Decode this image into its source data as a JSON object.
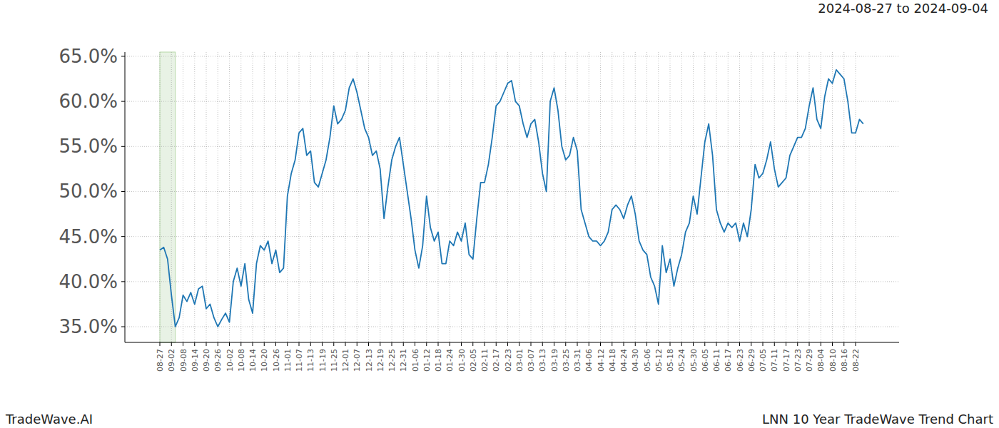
{
  "chart_data": {
    "type": "line",
    "title": "2024-08-27 to 2024-09-04",
    "annotations": [
      "TradeWave.AI",
      "LNN 10 Year TradeWave Trend Chart"
    ],
    "color": "#1f77b4",
    "grid": true,
    "highlight": [
      0,
      4
    ],
    "ylim": [
      33.26,
      65.47
    ],
    "yticks": [
      {
        "value": 35,
        "label": "35.0%"
      },
      {
        "value": 40,
        "label": "40.0%"
      },
      {
        "value": 45,
        "label": "45.0%"
      },
      {
        "value": 50,
        "label": "50.0%"
      },
      {
        "value": 55,
        "label": "55.0%"
      },
      {
        "value": 60,
        "label": "60.0%"
      },
      {
        "value": 65,
        "label": "65.0%"
      }
    ],
    "categories": [
      "08-27",
      null,
      null,
      "09-02",
      null,
      null,
      "09-08",
      null,
      null,
      "09-14",
      null,
      null,
      "09-20",
      null,
      null,
      "09-26",
      null,
      null,
      "10-02",
      null,
      null,
      "10-08",
      null,
      null,
      "10-14",
      null,
      null,
      "10-20",
      null,
      null,
      "10-26",
      null,
      null,
      "11-01",
      null,
      null,
      "11-07",
      null,
      null,
      "11-13",
      null,
      null,
      "11-19",
      null,
      null,
      "11-25",
      null,
      null,
      "12-01",
      null,
      null,
      "12-07",
      null,
      null,
      "12-13",
      null,
      null,
      "12-19",
      null,
      null,
      "12-25",
      null,
      null,
      "12-31",
      null,
      null,
      "01-06",
      null,
      null,
      "01-12",
      null,
      null,
      "01-18",
      null,
      null,
      "01-24",
      null,
      null,
      "01-30",
      null,
      null,
      "02-05",
      null,
      null,
      "02-11",
      null,
      null,
      "02-17",
      null,
      null,
      "02-23",
      null,
      null,
      "03-01",
      null,
      null,
      "03-07",
      null,
      null,
      "03-13",
      null,
      null,
      "03-19",
      null,
      null,
      "03-25",
      null,
      null,
      "03-31",
      null,
      null,
      "04-06",
      null,
      null,
      "04-12",
      null,
      null,
      "04-18",
      null,
      null,
      "04-24",
      null,
      null,
      "04-30",
      null,
      null,
      "05-06",
      null,
      null,
      "05-12",
      null,
      null,
      "05-18",
      null,
      null,
      "05-24",
      null,
      null,
      "05-30",
      null,
      null,
      "06-05",
      null,
      null,
      "06-11",
      null,
      null,
      "06-17",
      null,
      null,
      "06-23",
      null,
      null,
      "06-29",
      null,
      null,
      "07-05",
      null,
      null,
      "07-11",
      null,
      null,
      "07-17",
      null,
      null,
      "07-23",
      null,
      null,
      "07-29",
      null,
      null,
      "08-04",
      null,
      null,
      "08-10",
      null,
      null,
      "08-16",
      null,
      null,
      "08-22",
      null,
      null
    ],
    "values": [
      43.5,
      43.8,
      42.5,
      38.5,
      35.0,
      36.0,
      38.5,
      37.8,
      38.8,
      37.5,
      39.2,
      39.5,
      37.0,
      37.5,
      36.0,
      35.0,
      35.8,
      36.5,
      35.5,
      40.0,
      41.5,
      39.5,
      42.0,
      38.0,
      36.5,
      42.0,
      44.0,
      43.5,
      44.5,
      42.0,
      43.5,
      41.0,
      41.5,
      49.5,
      52.0,
      53.5,
      56.5,
      57.0,
      54.0,
      54.5,
      51.0,
      50.5,
      52.0,
      53.5,
      56.0,
      59.5,
      57.5,
      58.0,
      59.0,
      61.5,
      62.5,
      61.0,
      59.0,
      57.0,
      56.0,
      54.0,
      54.5,
      52.5,
      47.0,
      50.5,
      53.5,
      55.0,
      56.0,
      53.0,
      50.0,
      47.0,
      43.5,
      41.5,
      44.0,
      49.5,
      46.0,
      44.5,
      45.5,
      42.0,
      42.0,
      44.5,
      44.0,
      45.5,
      44.5,
      46.5,
      43.0,
      42.5,
      47.0,
      51.0,
      51.0,
      53.0,
      56.0,
      59.5,
      60.0,
      61.0,
      62.0,
      62.3,
      60.0,
      59.5,
      57.5,
      56.0,
      57.5,
      58.0,
      55.5,
      52.0,
      50.0,
      60.0,
      61.5,
      59.0,
      55.0,
      53.5,
      54.0,
      56.0,
      54.5,
      48.0,
      46.5,
      45.0,
      44.5,
      44.5,
      44.0,
      44.5,
      45.5,
      48.0,
      48.5,
      48.0,
      47.0,
      48.5,
      49.5,
      47.5,
      44.5,
      43.5,
      43.0,
      40.5,
      39.5,
      37.5,
      44.0,
      41.0,
      42.5,
      39.5,
      41.5,
      43.0,
      45.5,
      46.5,
      49.5,
      47.5,
      51.5,
      55.5,
      57.5,
      54.0,
      48.0,
      46.5,
      45.5,
      46.5,
      46.0,
      46.5,
      44.5,
      46.5,
      45.0,
      48.0,
      53.0,
      51.5,
      52.0,
      53.5,
      55.5,
      52.5,
      50.5,
      51.0,
      51.5,
      54.0,
      55.0,
      56.0,
      56.0,
      57.0,
      59.5,
      61.5,
      58.0,
      57.0,
      60.5,
      62.5,
      62.0,
      63.5,
      63.0,
      62.5,
      60.0,
      56.5,
      56.5,
      58.0,
      57.5
    ]
  }
}
